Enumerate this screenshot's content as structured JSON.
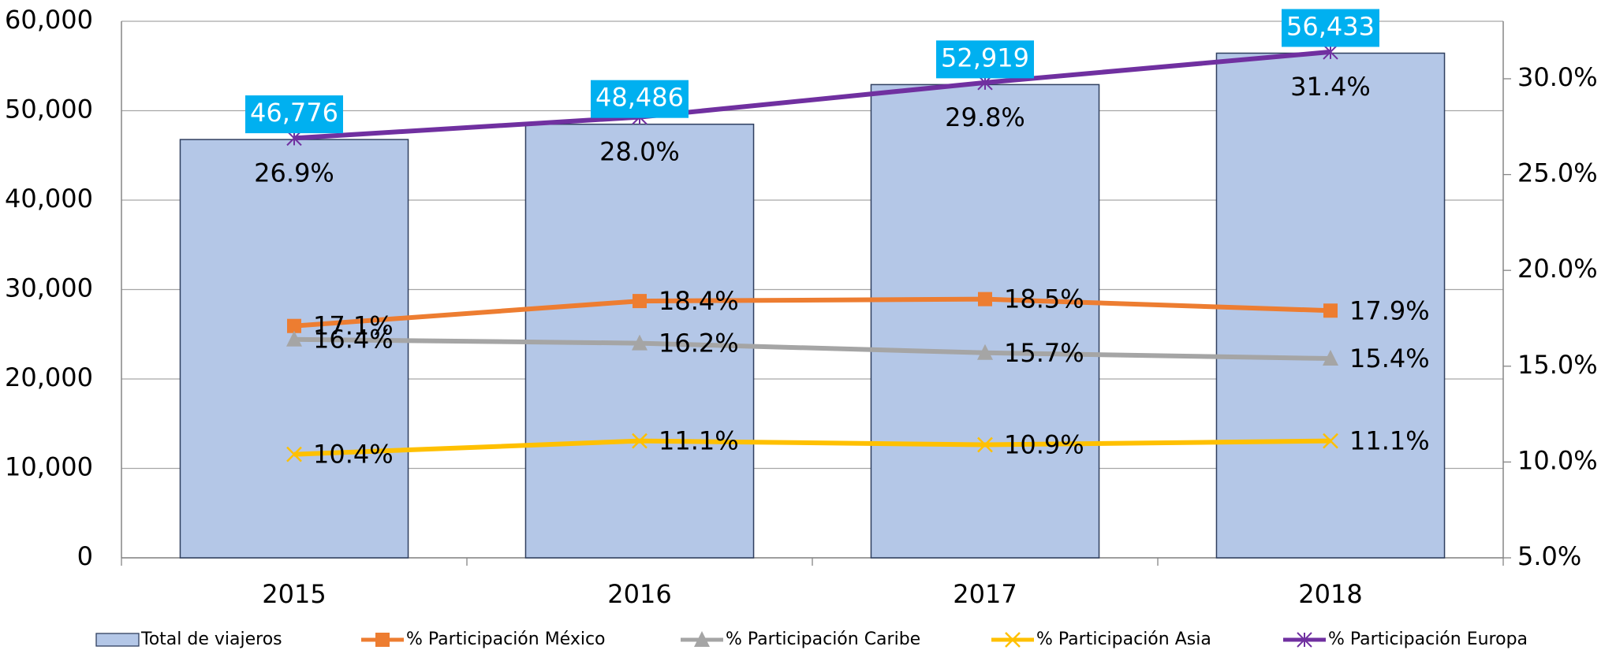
{
  "chart_data": {
    "type": "bar",
    "categories": [
      "2015",
      "2016",
      "2017",
      "2018"
    ],
    "series": [
      {
        "name": "Total de viajeros",
        "type": "bar",
        "color": "#b4c7e7",
        "values": [
          46776,
          48486,
          52919,
          56433
        ],
        "value_labels": [
          "46,776",
          "48,486",
          "52,919",
          "56,433"
        ]
      },
      {
        "name": "% Participación México",
        "type": "line",
        "axis": "y2",
        "marker": "square",
        "color": "#ed7d31",
        "values": [
          17.1,
          18.4,
          18.5,
          17.9
        ],
        "value_labels": [
          "17.1%",
          "18.4%",
          "18.5%",
          "17.9%"
        ]
      },
      {
        "name": "% Participación Caribe",
        "type": "line",
        "axis": "y2",
        "marker": "triangle",
        "color": "#a5a5a5",
        "values": [
          16.4,
          16.2,
          15.7,
          15.4
        ],
        "value_labels": [
          "16.4%",
          "16.2%",
          "15.7%",
          "15.4%"
        ]
      },
      {
        "name": "% Participación Asia",
        "type": "line",
        "axis": "y2",
        "marker": "x",
        "color": "#ffc000",
        "values": [
          10.4,
          11.1,
          10.9,
          11.1
        ],
        "value_labels": [
          "10.4%",
          "11.1%",
          "10.9%",
          "11.1%"
        ]
      },
      {
        "name": "% Participación Europa",
        "type": "line",
        "axis": "y2",
        "marker": "star",
        "color": "#7030a0",
        "values": [
          26.9,
          28.0,
          29.8,
          31.4
        ],
        "value_labels": [
          "26.9%",
          "28.0%",
          "29.8%",
          "31.4%"
        ]
      }
    ],
    "ylim": [
      0,
      60000
    ],
    "yticks": [
      0,
      {
        "value": 10000,
        "label": "10,000"
      },
      {
        "value": 20000,
        "label": "20,000"
      },
      {
        "value": 30000,
        "label": "30,000"
      },
      {
        "value": 40000,
        "label": "40,000"
      },
      {
        "value": 50000,
        "label": "50,000"
      },
      {
        "value": 60000,
        "label": "60,000"
      }
    ],
    "y2lim": [
      5,
      33
    ],
    "y2ticks": [
      {
        "value": 5,
        "label": "5.0%"
      },
      {
        "value": 10,
        "label": "10.0%"
      },
      {
        "value": 15,
        "label": "15.0%"
      },
      {
        "value": 20,
        "label": "20.0%"
      },
      {
        "value": 25,
        "label": "25.0%"
      },
      {
        "value": 30,
        "label": "30.0%"
      }
    ],
    "grid": true,
    "legend": "bottom"
  }
}
